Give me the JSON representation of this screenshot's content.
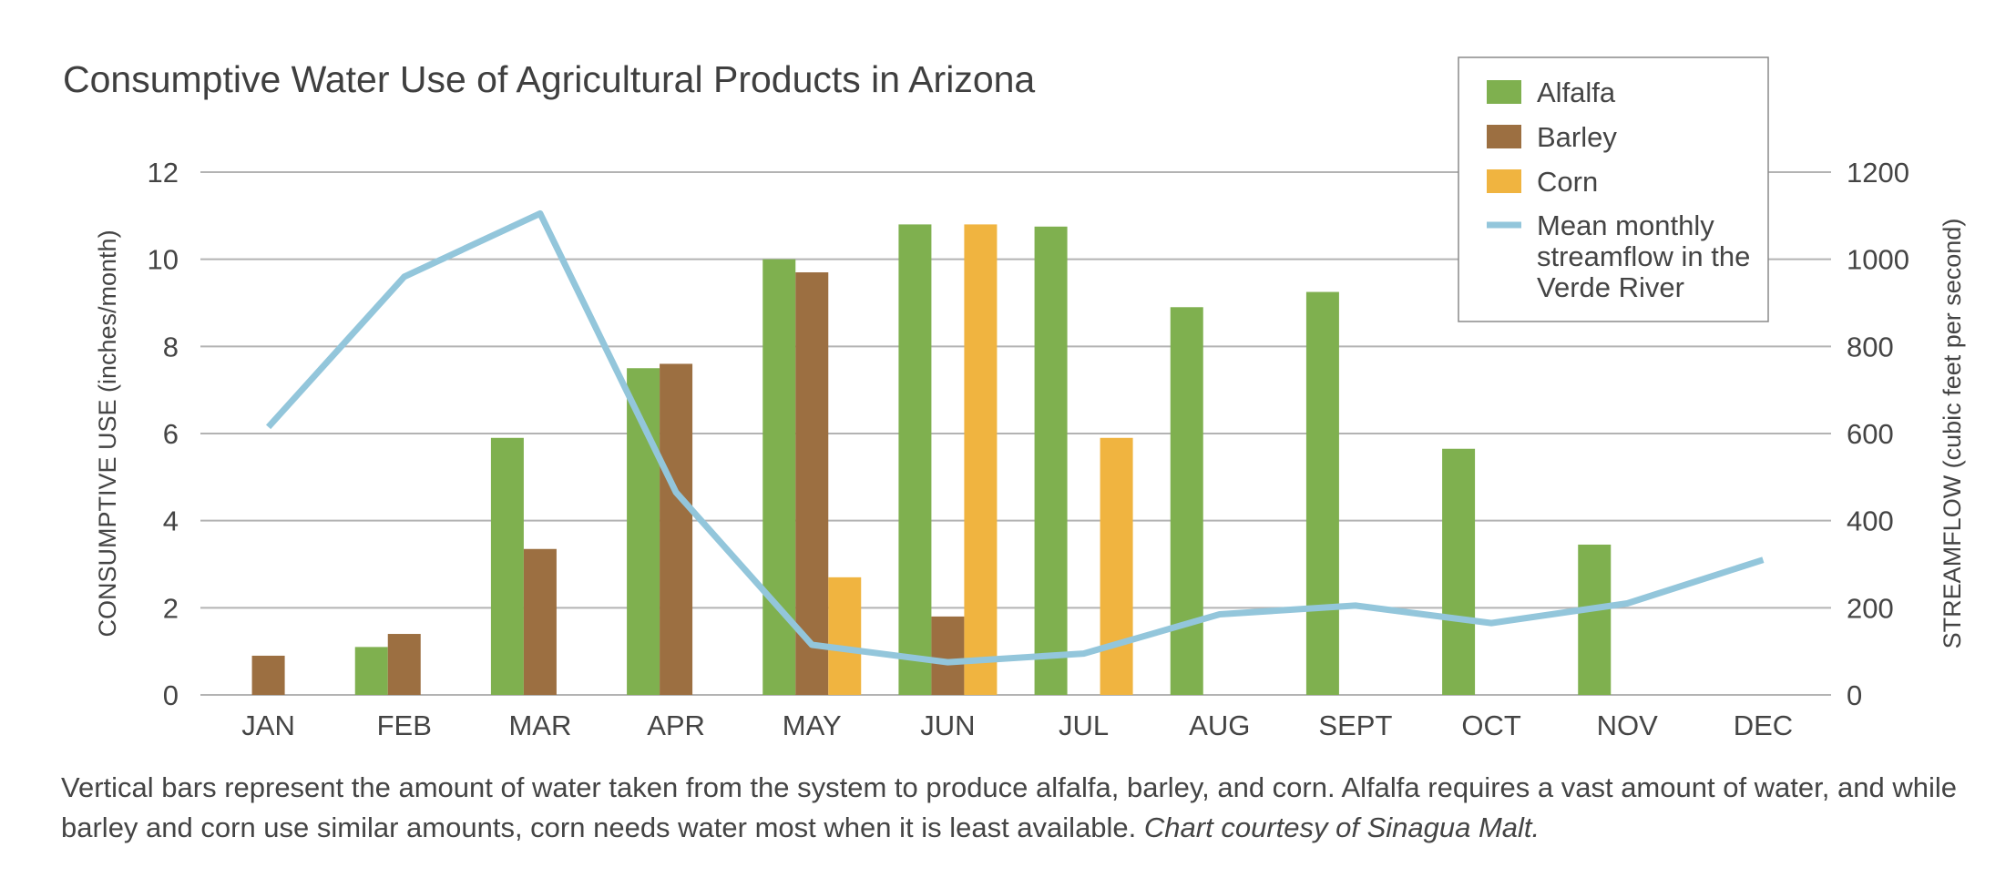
{
  "chart_data": {
    "type": "bar",
    "title": "Consumptive Water Use of Agricultural Products in Arizona",
    "categories": [
      "JAN",
      "FEB",
      "MAR",
      "APR",
      "MAY",
      "JUN",
      "JUL",
      "AUG",
      "SEPT",
      "OCT",
      "NOV",
      "DEC"
    ],
    "series": [
      {
        "name": "Alfalfa",
        "color": "#7fb04f",
        "values": [
          null,
          1.1,
          5.9,
          7.5,
          10.0,
          10.8,
          10.75,
          8.9,
          9.25,
          5.65,
          3.45,
          null
        ]
      },
      {
        "name": "Barley",
        "color": "#9c6f41",
        "values": [
          0.9,
          1.4,
          3.35,
          7.6,
          9.7,
          1.8,
          null,
          null,
          null,
          null,
          null,
          null
        ]
      },
      {
        "name": "Corn",
        "color": "#f0b440",
        "values": [
          null,
          null,
          null,
          null,
          2.7,
          10.8,
          5.9,
          null,
          null,
          null,
          null,
          null
        ]
      }
    ],
    "line_series": {
      "name": "Mean monthly streamflow in the Verde River",
      "color": "#93c6db",
      "axis": "right",
      "values": [
        615,
        960,
        1105,
        465,
        115,
        75,
        95,
        185,
        205,
        165,
        210,
        310
      ]
    },
    "ylabel": "CONSUMPTIVE USE (inches/month)",
    "ylabel_right": "STREAMFLOW (cubic feet per second)",
    "ylim": [
      0,
      12
    ],
    "ylim_right": [
      0,
      1200
    ],
    "yticks": [
      "0",
      "2",
      "4",
      "6",
      "8",
      "10",
      "12"
    ],
    "yticks_right": [
      "0",
      "200",
      "400",
      "600",
      "800",
      "1000",
      "1200"
    ],
    "grid": true,
    "legend": {
      "position": "top-right",
      "items": [
        "Alfalfa",
        "Barley",
        "Corn",
        "Mean monthly streamflow in the Verde River"
      ]
    }
  },
  "caption": {
    "text": "Vertical bars represent the amount of water taken from the system to produce alfalfa, barley, and corn. Alfalfa requires a vast amount of water, and while barley and corn use similar amounts, corn needs water most when it is least available.",
    "credit": "Chart courtesy of Sinagua Malt."
  },
  "colors": {
    "grid": "#b3b3b3",
    "axis_text": "#444444"
  }
}
